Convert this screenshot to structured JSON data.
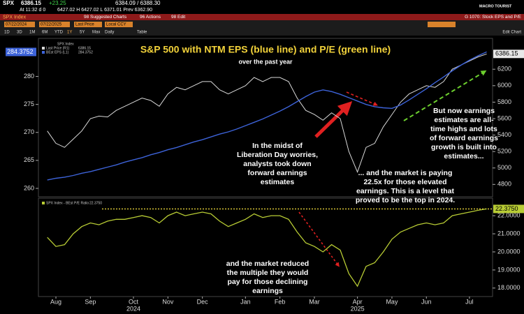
{
  "header": {
    "ticker": "SPX",
    "last": "6386.15",
    "change": "+23.25",
    "bid_ask": "6384.09 / 6388.30",
    "time": "At 11:32 d 0",
    "range": "6427.02 H 6427.02 L 6371.01 Prev 6362.90",
    "logo": "MACRO TOURIST",
    "security": "SPX Index",
    "menu": [
      "98 Suggested Charts",
      "96 Actions",
      "98 Edit"
    ],
    "chart_name": "G 1070: Stock EPS and P/E",
    "start_date": "07/22/2024",
    "end_date": "07/22/2025",
    "field": "Last Price",
    "currency": "Local CCY",
    "periods": [
      "1D",
      "3D",
      "1M",
      "6M",
      "YTD",
      "1Y",
      "5Y",
      "Max",
      "Daily"
    ],
    "table": "Table",
    "edit": "Edit Chart"
  },
  "chart_data": [
    {
      "type": "line",
      "title": "S&P 500 with NTM EPS (blue line) and P/E (green line)",
      "subtitle": "over the past year",
      "legend_title": "SPX Index",
      "ylim": [
        258.5,
        286.8
      ],
      "yticks": [
        260,
        265,
        270,
        275,
        280
      ],
      "y2lim": [
        4650,
        6575
      ],
      "y2ticks": [
        4800,
        5000,
        5200,
        5400,
        5600,
        5800,
        6000,
        6200
      ],
      "series": [
        {
          "name": "Last Price (R1)",
          "color": "#d9d9d9",
          "axis": "y2",
          "values": [
            5450,
            5300,
            5250,
            5350,
            5450,
            5600,
            5630,
            5620,
            5700,
            5750,
            5800,
            5850,
            5820,
            5750,
            5900,
            5980,
            5950,
            6000,
            6050,
            6050,
            5950,
            5900,
            5950,
            6000,
            6100,
            6050,
            6100,
            6100,
            6050,
            5850,
            5700,
            5650,
            5580,
            5670,
            5600,
            5200,
            4950,
            5250,
            5300,
            5500,
            5650,
            5800,
            5900,
            5950,
            6000,
            5980,
            6050,
            6200,
            6250,
            6300,
            6350,
            6386.15
          ]
        },
        {
          "name": "BEst EPS (L1)",
          "color": "#3d63d9",
          "values": [
            261.5,
            261.8,
            262.0,
            262.3,
            262.7,
            263.0,
            263.4,
            263.8,
            264.2,
            264.7,
            265.1,
            265.5,
            266.0,
            266.4,
            266.9,
            267.3,
            267.8,
            268.3,
            268.7,
            269.2,
            269.7,
            270.1,
            270.6,
            271.2,
            271.8,
            272.4,
            273.1,
            273.8,
            274.6,
            275.5,
            276.4,
            277.2,
            277.6,
            277.3,
            276.8,
            276.2,
            275.6,
            275.0,
            274.6,
            274.4,
            274.3,
            274.9,
            275.8,
            276.8,
            277.8,
            278.9,
            279.9,
            281.0,
            282.0,
            282.9,
            283.7,
            284.3752
          ]
        }
      ],
      "annotations": [
        "In the midst of Liberation Day worries, analysts took down forward earnings estimates",
        "But now earnings estimates are all-time highs and lots of forward earnings growth is built into estimates...",
        "... and the market is paying 22.5x for those elevated earnings. This is a level that proved to be the top in 2024."
      ]
    },
    {
      "type": "line",
      "categories": [
        null,
        "Aug",
        null,
        null,
        null,
        "Sep",
        null,
        null,
        null,
        null,
        "Oct",
        null,
        null,
        null,
        "Nov",
        null,
        null,
        null,
        "Dec",
        null,
        null,
        null,
        null,
        "Jan",
        null,
        null,
        null,
        "Feb",
        null,
        null,
        null,
        "Mar",
        null,
        null,
        null,
        null,
        "Apr",
        null,
        null,
        null,
        "May",
        null,
        null,
        null,
        "Jun",
        null,
        null,
        null,
        null,
        "Jul",
        null,
        null
      ],
      "x_group_labels": [
        "2024",
        "2025"
      ],
      "ylim": [
        17.53,
        22.97
      ],
      "yticks": [
        {
          "value": 18,
          "label": "18.0000"
        },
        {
          "value": 19,
          "label": "19.0000"
        },
        {
          "value": 20,
          "label": "20.0000"
        },
        {
          "value": 21,
          "label": "21.0000"
        },
        {
          "value": 22,
          "label": "22.0000"
        }
      ],
      "series": [
        {
          "name": "SPX Index - BEst P/E Ratio",
          "color": "#b8cc34",
          "last_label": "22.3750",
          "values": [
            20.8,
            20.3,
            20.4,
            21.0,
            21.4,
            21.6,
            21.5,
            21.7,
            21.8,
            21.8,
            21.9,
            22.0,
            21.9,
            21.6,
            22.0,
            22.2,
            22.0,
            22.1,
            22.2,
            22.1,
            21.7,
            21.4,
            21.6,
            21.8,
            22.1,
            21.9,
            22.0,
            22.0,
            21.8,
            21.1,
            20.5,
            20.3,
            20.0,
            20.4,
            20.1,
            18.8,
            18.1,
            19.2,
            19.4,
            20.0,
            20.7,
            21.1,
            21.3,
            21.5,
            21.6,
            21.5,
            21.6,
            22.0,
            22.1,
            22.2,
            22.3,
            22.375
          ]
        }
      ],
      "annotations": [
        "and the market reduced the multiple they would pay for those declining earnings"
      ]
    }
  ]
}
